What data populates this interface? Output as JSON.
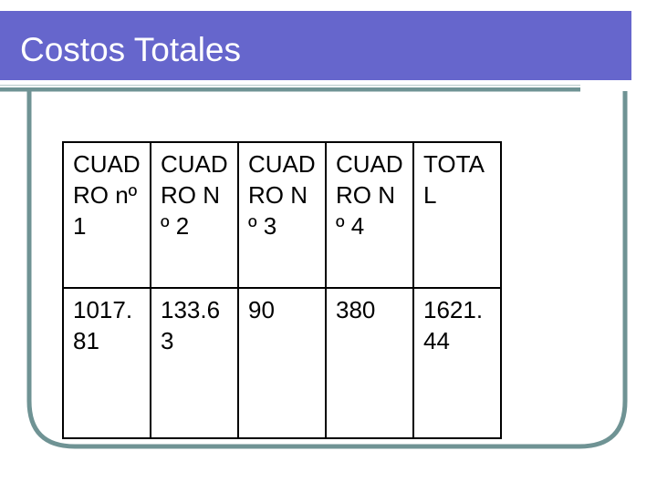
{
  "header": {
    "title": "Costos Totales"
  },
  "table": {
    "columns": [
      "CUADRO nº 1",
      "CUADRO Nº 2",
      "CUADRO Nº 3",
      "CUADRO Nº 4",
      "TOTAL"
    ],
    "rows": [
      [
        "1017.81",
        "133.63",
        "90",
        "380",
        "1621.44"
      ]
    ]
  }
}
